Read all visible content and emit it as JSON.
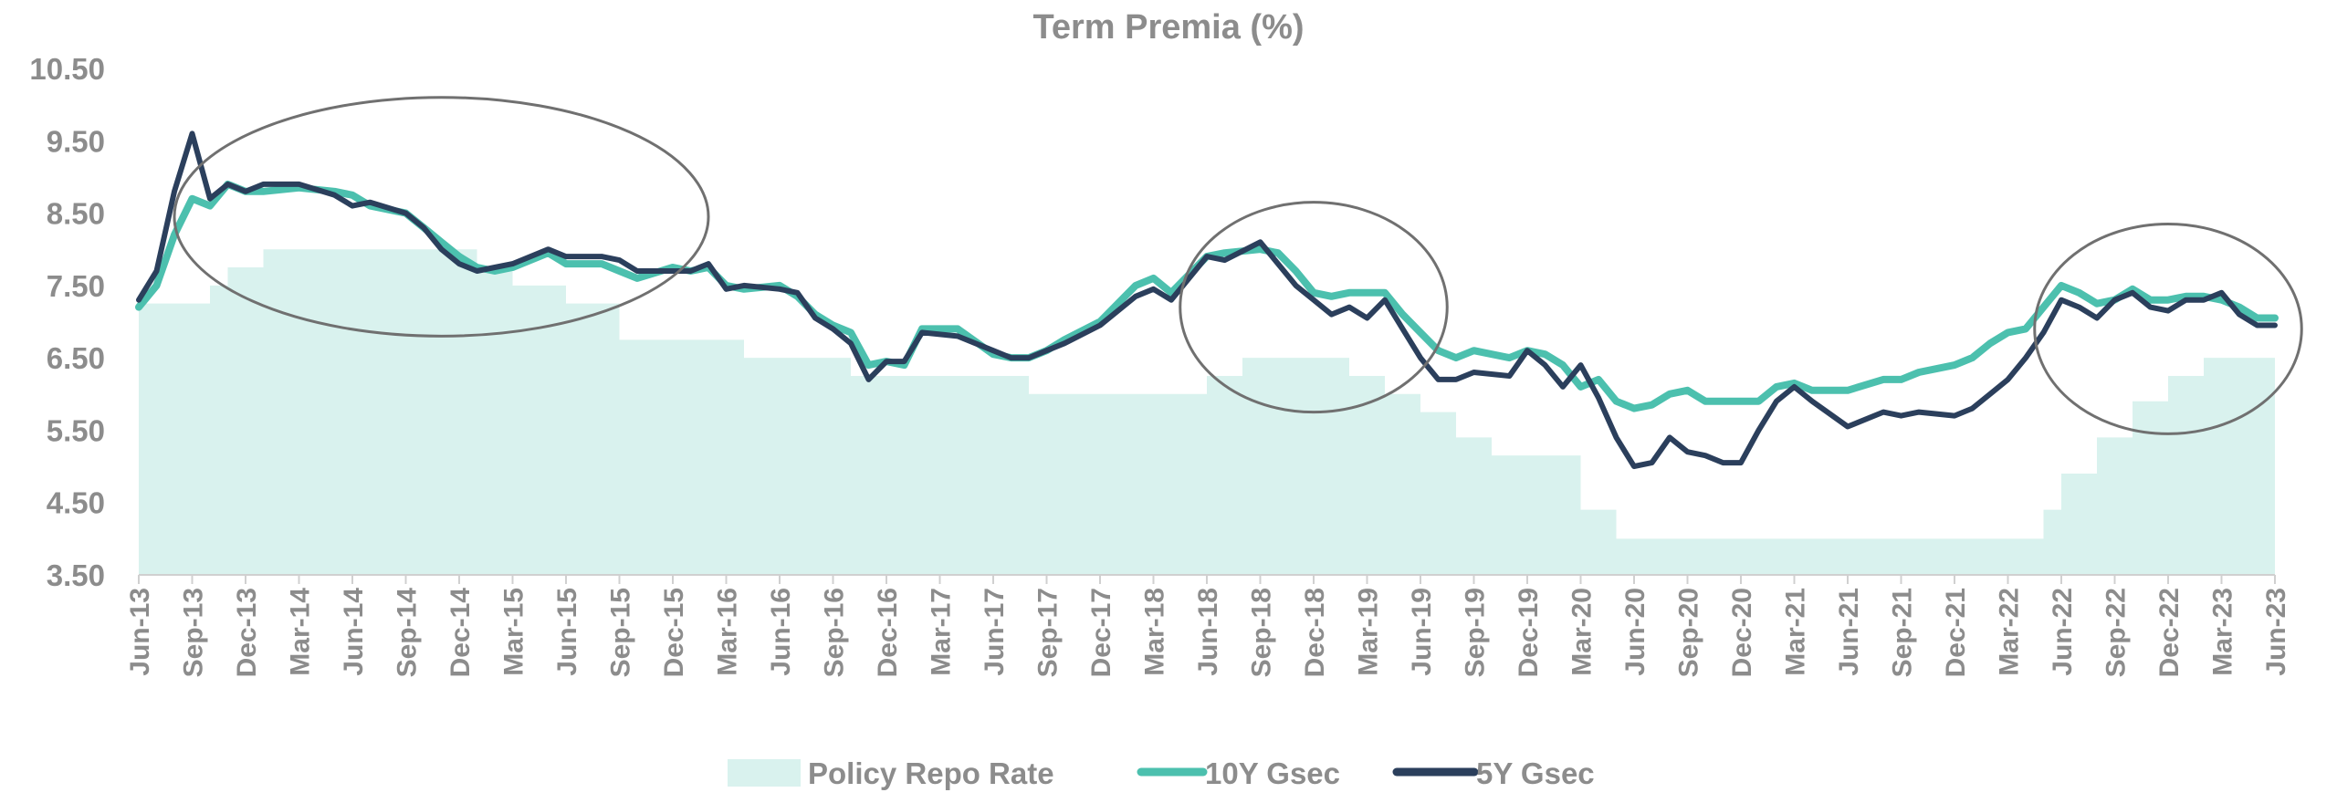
{
  "chart_data": {
    "type": "line",
    "title": "Term Premia (%)",
    "xlabel": "",
    "ylabel": "",
    "ylim": [
      3.5,
      10.5
    ],
    "yticks": [
      "3.50",
      "4.50",
      "5.50",
      "6.50",
      "7.50",
      "8.50",
      "9.50",
      "10.50"
    ],
    "x_range": [
      "2013-06",
      "2023-06"
    ],
    "xticks": [
      "Jun-13",
      "Sep-13",
      "Dec-13",
      "Mar-14",
      "Jun-14",
      "Sep-14",
      "Dec-14",
      "Mar-15",
      "Jun-15",
      "Sep-15",
      "Dec-15",
      "Mar-16",
      "Jun-16",
      "Sep-16",
      "Dec-16",
      "Mar-17",
      "Jun-17",
      "Sep-17",
      "Dec-17",
      "Mar-18",
      "Jun-18",
      "Sep-18",
      "Dec-18",
      "Mar-19",
      "Jun-19",
      "Sep-19",
      "Dec-19",
      "Mar-20",
      "Jun-20",
      "Sep-20",
      "Dec-20",
      "Mar-21",
      "Jun-21",
      "Sep-21",
      "Dec-21",
      "Mar-22",
      "Jun-22",
      "Sep-22",
      "Dec-22",
      "Mar-23",
      "Jun-23"
    ],
    "grid": false,
    "legend": "bottom",
    "series": [
      {
        "name": "Policy Repo Rate",
        "kind": "area",
        "color": "#d9f2ee",
        "x": [
          "2013-06",
          "2013-09",
          "2013-10",
          "2013-11",
          "2014-01",
          "2015-01",
          "2015-03",
          "2015-06",
          "2015-09",
          "2016-04",
          "2016-10",
          "2017-08",
          "2018-06",
          "2018-08",
          "2019-02",
          "2019-04",
          "2019-06",
          "2019-08",
          "2019-10",
          "2020-03",
          "2020-05",
          "2022-05",
          "2022-06",
          "2022-08",
          "2022-10",
          "2022-12",
          "2023-02",
          "2023-06"
        ],
        "values": [
          7.25,
          7.25,
          7.5,
          7.75,
          8.0,
          7.75,
          7.5,
          7.25,
          6.75,
          6.5,
          6.25,
          6.0,
          6.25,
          6.5,
          6.25,
          6.0,
          5.75,
          5.4,
          5.15,
          4.4,
          4.0,
          4.4,
          4.9,
          5.4,
          5.9,
          6.25,
          6.5,
          6.5
        ]
      },
      {
        "name": "10Y Gsec",
        "kind": "line",
        "color": "#4cc0ae",
        "x": [
          "2013-06",
          "2013-07",
          "2013-08",
          "2013-09",
          "2013-10",
          "2013-11",
          "2013-12",
          "2014-01",
          "2014-03",
          "2014-05",
          "2014-06",
          "2014-07",
          "2014-09",
          "2014-10",
          "2014-11",
          "2014-12",
          "2015-01",
          "2015-02",
          "2015-03",
          "2015-05",
          "2015-06",
          "2015-08",
          "2015-09",
          "2015-10",
          "2015-12",
          "2016-01",
          "2016-02",
          "2016-03",
          "2016-04",
          "2016-06",
          "2016-07",
          "2016-08",
          "2016-09",
          "2016-10",
          "2016-11",
          "2016-12",
          "2017-01",
          "2017-02",
          "2017-04",
          "2017-06",
          "2017-07",
          "2017-08",
          "2017-09",
          "2017-10",
          "2017-12",
          "2018-02",
          "2018-03",
          "2018-04",
          "2018-06",
          "2018-07",
          "2018-09",
          "2018-10",
          "2018-11",
          "2018-12",
          "2019-01",
          "2019-02",
          "2019-03",
          "2019-04",
          "2019-05",
          "2019-06",
          "2019-07",
          "2019-08",
          "2019-09",
          "2019-11",
          "2019-12",
          "2020-01",
          "2020-02",
          "2020-03",
          "2020-04",
          "2020-05",
          "2020-06",
          "2020-07",
          "2020-08",
          "2020-09",
          "2020-10",
          "2020-11",
          "2020-12",
          "2021-01",
          "2021-02",
          "2021-03",
          "2021-04",
          "2021-06",
          "2021-08",
          "2021-09",
          "2021-10",
          "2021-12",
          "2022-01",
          "2022-02",
          "2022-03",
          "2022-04",
          "2022-05",
          "2022-06",
          "2022-07",
          "2022-08",
          "2022-09",
          "2022-10",
          "2022-11",
          "2022-12",
          "2023-01",
          "2023-02",
          "2023-03",
          "2023-04",
          "2023-05",
          "2023-06"
        ],
        "values": [
          7.2,
          7.5,
          8.2,
          8.7,
          8.6,
          8.9,
          8.8,
          8.8,
          8.85,
          8.8,
          8.75,
          8.6,
          8.5,
          8.3,
          8.1,
          7.9,
          7.75,
          7.7,
          7.75,
          7.95,
          7.8,
          7.8,
          7.7,
          7.6,
          7.75,
          7.7,
          7.75,
          7.5,
          7.45,
          7.5,
          7.35,
          7.1,
          6.95,
          6.85,
          6.4,
          6.45,
          6.4,
          6.9,
          6.9,
          6.55,
          6.5,
          6.5,
          6.6,
          6.75,
          7.0,
          7.5,
          7.6,
          7.4,
          7.9,
          7.95,
          8.0,
          7.95,
          7.7,
          7.4,
          7.35,
          7.4,
          7.4,
          7.4,
          7.1,
          6.85,
          6.6,
          6.5,
          6.6,
          6.5,
          6.6,
          6.55,
          6.4,
          6.1,
          6.2,
          5.9,
          5.8,
          5.85,
          6.0,
          6.05,
          5.9,
          5.9,
          5.9,
          5.9,
          6.1,
          6.15,
          6.05,
          6.05,
          6.2,
          6.2,
          6.3,
          6.4,
          6.5,
          6.7,
          6.85,
          6.9,
          7.2,
          7.5,
          7.4,
          7.25,
          7.3,
          7.45,
          7.3,
          7.3,
          7.35,
          7.35,
          7.3,
          7.2,
          7.05,
          7.05
        ]
      },
      {
        "name": "5Y Gsec",
        "kind": "line",
        "color": "#2b3f5c",
        "x": [
          "2013-06",
          "2013-07",
          "2013-08",
          "2013-09",
          "2013-10",
          "2013-11",
          "2013-12",
          "2014-01",
          "2014-03",
          "2014-05",
          "2014-06",
          "2014-07",
          "2014-09",
          "2014-10",
          "2014-11",
          "2014-12",
          "2015-01",
          "2015-02",
          "2015-03",
          "2015-05",
          "2015-06",
          "2015-08",
          "2015-09",
          "2015-10",
          "2015-12",
          "2016-01",
          "2016-02",
          "2016-03",
          "2016-04",
          "2016-06",
          "2016-07",
          "2016-08",
          "2016-09",
          "2016-10",
          "2016-11",
          "2016-12",
          "2017-01",
          "2017-02",
          "2017-04",
          "2017-06",
          "2017-07",
          "2017-08",
          "2017-09",
          "2017-10",
          "2017-12",
          "2018-02",
          "2018-03",
          "2018-04",
          "2018-06",
          "2018-07",
          "2018-09",
          "2018-10",
          "2018-11",
          "2018-12",
          "2019-01",
          "2019-02",
          "2019-03",
          "2019-04",
          "2019-05",
          "2019-06",
          "2019-07",
          "2019-08",
          "2019-09",
          "2019-11",
          "2019-12",
          "2020-01",
          "2020-02",
          "2020-03",
          "2020-04",
          "2020-05",
          "2020-06",
          "2020-07",
          "2020-08",
          "2020-09",
          "2020-10",
          "2020-11",
          "2020-12",
          "2021-01",
          "2021-02",
          "2021-03",
          "2021-04",
          "2021-06",
          "2021-08",
          "2021-09",
          "2021-10",
          "2021-12",
          "2022-01",
          "2022-02",
          "2022-03",
          "2022-04",
          "2022-05",
          "2022-06",
          "2022-07",
          "2022-08",
          "2022-09",
          "2022-10",
          "2022-11",
          "2022-12",
          "2023-01",
          "2023-02",
          "2023-03",
          "2023-04",
          "2023-05",
          "2023-06"
        ],
        "values": [
          7.3,
          7.7,
          8.8,
          9.6,
          8.7,
          8.9,
          8.8,
          8.9,
          8.9,
          8.75,
          8.6,
          8.65,
          8.5,
          8.3,
          8.0,
          7.8,
          7.7,
          7.75,
          7.8,
          8.0,
          7.9,
          7.9,
          7.85,
          7.7,
          7.7,
          7.7,
          7.8,
          7.45,
          7.5,
          7.45,
          7.4,
          7.05,
          6.9,
          6.7,
          6.2,
          6.45,
          6.45,
          6.85,
          6.8,
          6.6,
          6.5,
          6.5,
          6.6,
          6.7,
          6.95,
          7.35,
          7.45,
          7.3,
          7.9,
          7.85,
          8.1,
          7.8,
          7.5,
          7.3,
          7.1,
          7.2,
          7.05,
          7.3,
          6.9,
          6.5,
          6.2,
          6.2,
          6.3,
          6.25,
          6.6,
          6.4,
          6.1,
          6.4,
          5.95,
          5.4,
          5.0,
          5.05,
          5.4,
          5.2,
          5.15,
          5.05,
          5.05,
          5.5,
          5.9,
          6.1,
          5.9,
          5.55,
          5.75,
          5.7,
          5.75,
          5.7,
          5.8,
          6.0,
          6.2,
          6.5,
          6.85,
          7.3,
          7.2,
          7.05,
          7.3,
          7.4,
          7.2,
          7.15,
          7.3,
          7.3,
          7.4,
          7.1,
          6.95,
          6.95
        ]
      }
    ],
    "annotations": [
      {
        "type": "ellipse",
        "cx": "2014-11",
        "cy": 8.45,
        "rx_months": 15,
        "ry": 1.65,
        "color": "#707070"
      },
      {
        "type": "ellipse",
        "cx": "2018-12",
        "cy": 7.2,
        "rx_months": 7.5,
        "ry": 1.45,
        "color": "#707070"
      },
      {
        "type": "ellipse",
        "cx": "2022-12",
        "cy": 6.9,
        "rx_months": 7.5,
        "ry": 1.45,
        "color": "#707070"
      }
    ]
  }
}
